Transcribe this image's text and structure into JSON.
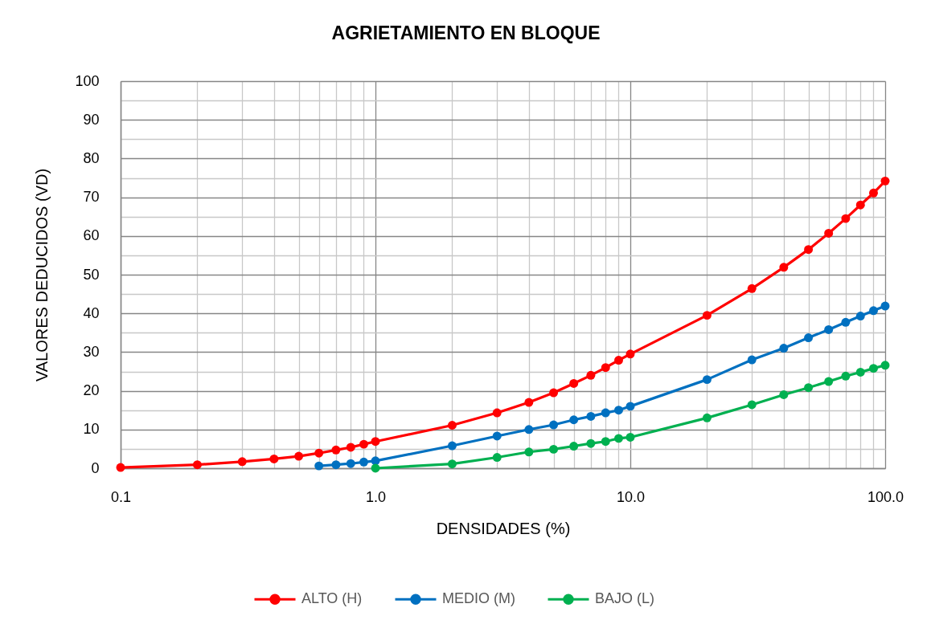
{
  "chart_data": {
    "type": "line",
    "title": "AGRIETAMIENTO EN BLOQUE",
    "xlabel": "DENSIDADES (%)",
    "ylabel": "VALORES DEDUCIDOS (VD)",
    "log": "x",
    "xlim": [
      0.1,
      100
    ],
    "xticks": [
      0.1,
      {
        "value": 0.2,
        "label": null
      },
      {
        "value": 0.3,
        "label": null
      },
      {
        "value": 0.4,
        "label": null
      },
      {
        "value": 0.5,
        "label": null
      },
      {
        "value": 0.6,
        "label": null
      },
      {
        "value": 0.7,
        "label": null
      },
      {
        "value": 0.8,
        "label": null
      },
      {
        "value": 0.9,
        "label": null
      },
      {
        "value": 1,
        "label": "1.0"
      },
      {
        "value": 2,
        "label": null
      },
      {
        "value": 3,
        "label": null
      },
      {
        "value": 4,
        "label": null
      },
      {
        "value": 5,
        "label": null
      },
      {
        "value": 6,
        "label": null
      },
      {
        "value": 7,
        "label": null
      },
      {
        "value": 8,
        "label": null
      },
      {
        "value": 9,
        "label": null
      },
      {
        "value": 10,
        "label": "10.0"
      },
      {
        "value": 20,
        "label": null
      },
      {
        "value": 30,
        "label": null
      },
      {
        "value": 40,
        "label": null
      },
      {
        "value": 50,
        "label": null
      },
      {
        "value": 60,
        "label": null
      },
      {
        "value": 70,
        "label": null
      },
      {
        "value": 80,
        "label": null
      },
      {
        "value": 90,
        "label": null
      },
      {
        "value": 100,
        "label": "100.0"
      }
    ],
    "ylim": [
      0,
      100
    ],
    "yticks": [
      0,
      {
        "value": 5,
        "label": null
      },
      10,
      {
        "value": 15,
        "label": null
      },
      20,
      {
        "value": 25,
        "label": null
      },
      30,
      {
        "value": 35,
        "label": null
      },
      40,
      {
        "value": 45,
        "label": null
      },
      50,
      {
        "value": 55,
        "label": null
      },
      60,
      {
        "value": 65,
        "label": null
      },
      70,
      {
        "value": 75,
        "label": null
      },
      80,
      {
        "value": 85,
        "label": null
      },
      90,
      {
        "value": 95,
        "label": null
      },
      100
    ],
    "grid": true,
    "legend": "bottom",
    "marker": "circle",
    "line_style": "solid",
    "series": [
      {
        "name": "ALTO (H)",
        "color": "#ff0000",
        "x": [
          0.1,
          0.2,
          0.3,
          0.4,
          0.5,
          0.6,
          0.7,
          0.8,
          0.9,
          1,
          2,
          3,
          4,
          5,
          6,
          7,
          8,
          9,
          10,
          20,
          30,
          40,
          50,
          60,
          70,
          80,
          90,
          100
        ],
        "values": [
          0.2,
          0.9,
          1.7,
          2.4,
          3.1,
          3.9,
          4.7,
          5.4,
          6.2,
          6.9,
          11.1,
          14.3,
          17.0,
          19.5,
          21.9,
          24.0,
          26.0,
          27.9,
          29.5,
          39.5,
          46.4,
          51.9,
          56.5,
          60.7,
          64.5,
          68.0,
          71.1,
          74.2
        ]
      },
      {
        "name": "MEDIO (M)",
        "color": "#0070c0",
        "x": [
          0.6,
          0.7,
          0.8,
          0.9,
          1,
          2,
          3,
          4,
          5,
          6,
          7,
          8,
          9,
          10,
          20,
          30,
          40,
          50,
          60,
          70,
          80,
          90,
          100
        ],
        "values": [
          0.6,
          0.9,
          1.2,
          1.6,
          1.9,
          5.8,
          8.3,
          10.0,
          11.2,
          12.5,
          13.4,
          14.3,
          15.0,
          16.0,
          22.9,
          28.0,
          31.0,
          33.7,
          35.8,
          37.7,
          39.3,
          40.7,
          41.9
        ]
      },
      {
        "name": "BAJO (L)",
        "color": "#00b050",
        "x": [
          1,
          2,
          3,
          4,
          5,
          6,
          7,
          8,
          9,
          10,
          20,
          30,
          40,
          50,
          60,
          70,
          80,
          90,
          100
        ],
        "values": [
          0,
          1.1,
          2.8,
          4.2,
          4.9,
          5.7,
          6.4,
          6.9,
          7.7,
          8.0,
          13.0,
          16.4,
          19.0,
          20.8,
          22.4,
          23.8,
          24.8,
          25.8,
          26.6
        ]
      }
    ]
  }
}
